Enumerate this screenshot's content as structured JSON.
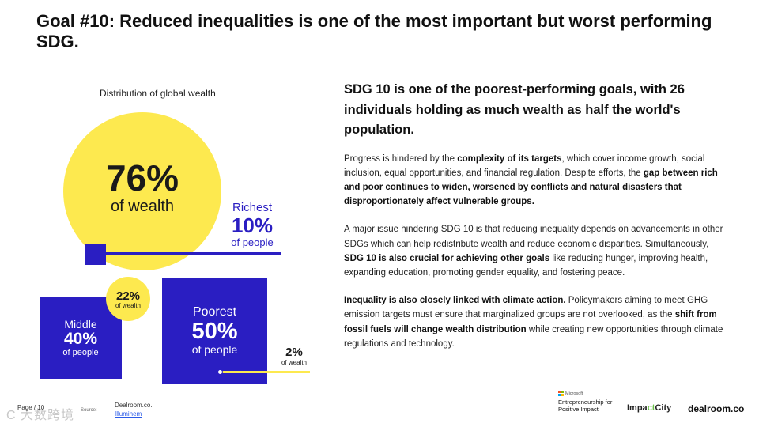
{
  "title": "Goal #10: Reduced inequalities is one of the most important but worst performing SDG.",
  "infographic": {
    "label": "Distribution of global wealth",
    "richest": {
      "wealth_pct": "76%",
      "wealth_sub": "of wealth",
      "label": "Richest",
      "people_pct": "10%",
      "people_sub": "of people"
    },
    "middle": {
      "wealth_pct": "22%",
      "wealth_sub": "of wealth",
      "label": "Middle",
      "people_pct": "40%",
      "people_sub": "of people"
    },
    "poorest": {
      "wealth_pct": "2%",
      "wealth_sub": "of wealth",
      "label": "Poorest",
      "people_pct": "50%",
      "people_sub": "of people"
    },
    "colors": {
      "wealth": "#fde94f",
      "people": "#2a1ec2"
    }
  },
  "right": {
    "headline": "SDG 10 is one of the poorest-performing goals, with 26 individuals holding as much wealth as half the world's population.",
    "p1": {
      "a": "Progress is hindered by the ",
      "b": "complexity of its targets",
      "c": ", which cover income growth, social inclusion, equal opportunities, and financial regulation. Despite efforts, the ",
      "d": "gap between rich and poor continues to widen, worsened by conflicts and natural disasters that disproportionately affect vulnerable groups."
    },
    "p2": {
      "a": "A major issue hindering SDG 10 is that reducing inequality depends on advancements in other SDGs which can help redistribute wealth and reduce economic disparities. Simultaneously, ",
      "b": "SDG 10 is also crucial for achieving other goals",
      "c": " like reducing hunger, improving health, expanding education, promoting gender equality, and fostering peace."
    },
    "p3": {
      "a": "Inequality is also closely linked with climate action.",
      "b": " Policymakers aiming to meet GHG emission targets must ensure that marginalized groups are not overlooked, as the ",
      "c": "shift from fossil fuels will change wealth distribution",
      "d": " while creating new opportunities through climate regulations and technology."
    }
  },
  "footer": {
    "page": "Page / 10",
    "source_label": "Source:",
    "source_line1": "Dealroom.co.",
    "source_link": "Illuminem",
    "watermark": "C 大数跨境",
    "microsoft": "Microsoft",
    "ms_program": "Entrepreneurship for Positive Impact",
    "impactcity_a": "Impa",
    "impactcity_b": "ct",
    "impactcity_c": "City",
    "dealroom": "dealroom.co"
  }
}
